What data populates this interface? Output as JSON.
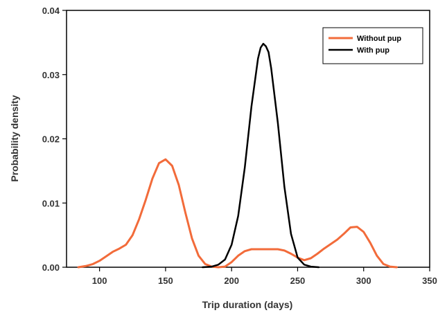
{
  "chart_data": {
    "type": "line",
    "title": "",
    "xlabel": "Trip duration (days)",
    "ylabel": "Probability density",
    "xlim": [
      75,
      350
    ],
    "ylim": [
      0,
      0.04
    ],
    "x_ticks": [
      100,
      150,
      200,
      250,
      300,
      350
    ],
    "y_ticks": [
      0.0,
      0.01,
      0.02,
      0.03,
      0.04
    ],
    "x_tick_labels": [
      "100",
      "150",
      "200",
      "250",
      "300",
      "350"
    ],
    "y_tick_labels": [
      "0.00",
      "0.01",
      "0.02",
      "0.03",
      "0.04"
    ],
    "grid": false,
    "legend_position": "top-right",
    "series": [
      {
        "name": "Without pup",
        "color": "#f26b3a",
        "x": [
          84,
          90,
          95,
          100,
          105,
          110,
          115,
          120,
          125,
          130,
          135,
          140,
          145,
          150,
          155,
          160,
          165,
          170,
          175,
          180,
          185,
          190,
          195,
          200,
          205,
          210,
          215,
          220,
          225,
          230,
          235,
          240,
          245,
          250,
          255,
          260,
          265,
          270,
          275,
          280,
          285,
          290,
          295,
          300,
          305,
          310,
          315,
          320,
          325
        ],
        "y": [
          0.0,
          0.0002,
          0.0005,
          0.001,
          0.0017,
          0.0024,
          0.0029,
          0.0035,
          0.005,
          0.0075,
          0.0105,
          0.0138,
          0.0162,
          0.0168,
          0.0158,
          0.0128,
          0.0085,
          0.0045,
          0.0018,
          0.0005,
          0.0001,
          0.0,
          0.0001,
          0.0008,
          0.0018,
          0.0025,
          0.0028,
          0.0028,
          0.0028,
          0.0028,
          0.0028,
          0.0026,
          0.0021,
          0.0015,
          0.0011,
          0.0014,
          0.0021,
          0.0029,
          0.0036,
          0.0043,
          0.0052,
          0.0062,
          0.0063,
          0.0055,
          0.0038,
          0.0018,
          0.0005,
          0.0001,
          0.0
        ]
      },
      {
        "name": "With pup",
        "color": "#000000",
        "x": [
          178,
          185,
          190,
          195,
          200,
          205,
          210,
          215,
          220,
          222,
          224,
          226,
          228,
          230,
          235,
          240,
          245,
          250,
          255,
          260,
          266
        ],
        "y": [
          0.0,
          0.0001,
          0.0004,
          0.0012,
          0.0035,
          0.008,
          0.0155,
          0.025,
          0.0325,
          0.0342,
          0.0348,
          0.0344,
          0.0335,
          0.031,
          0.0225,
          0.0125,
          0.0052,
          0.0015,
          0.0004,
          0.0001,
          0.0
        ]
      }
    ]
  }
}
